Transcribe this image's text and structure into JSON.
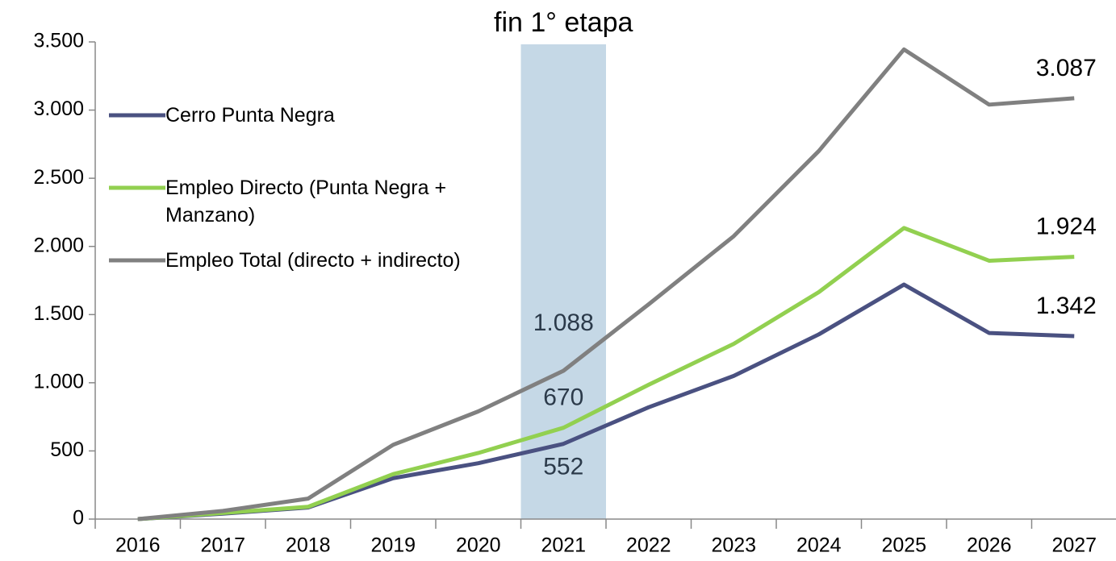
{
  "chart_data": {
    "type": "line",
    "categories": [
      "2016",
      "2017",
      "2018",
      "2019",
      "2020",
      "2021",
      "2022",
      "2023",
      "2024",
      "2025",
      "2026",
      "2027"
    ],
    "series": [
      {
        "name": "Cerro Punta Negra",
        "color": "#4a5181",
        "values": [
          0,
          40,
          85,
          300,
          410,
          552,
          820,
          1050,
          1355,
          1720,
          1365,
          1342
        ],
        "value_labels": [
          null,
          null,
          null,
          null,
          null,
          "552",
          null,
          null,
          null,
          null,
          null,
          "1.342"
        ]
      },
      {
        "name": "Empleo Directo (Punta Negra + Manzano)",
        "color": "#92d050",
        "values": [
          0,
          45,
          90,
          330,
          485,
          670,
          985,
          1285,
          1665,
          2135,
          1895,
          1924
        ],
        "value_labels": [
          null,
          null,
          null,
          null,
          null,
          "670",
          null,
          null,
          null,
          null,
          null,
          "1.924"
        ]
      },
      {
        "name": "Empleo Total (directo + indirecto)",
        "color": "#808080",
        "values": [
          0,
          60,
          150,
          545,
          790,
          1088,
          1575,
          2075,
          2700,
          3445,
          3040,
          3087
        ],
        "value_labels": [
          null,
          null,
          null,
          null,
          null,
          "1.088",
          null,
          null,
          null,
          null,
          null,
          "3.087"
        ]
      }
    ],
    "ylim": [
      0,
      3500
    ],
    "yticks": [
      0,
      500,
      {
        "value": 1000,
        "label": "1.000"
      },
      {
        "value": 1500,
        "label": "1.500"
      },
      {
        "value": 2000,
        "label": "2.000"
      },
      {
        "value": 2500,
        "label": "2.500"
      },
      {
        "value": 3000,
        "label": "3.000"
      },
      {
        "value": 3500,
        "label": "3.500"
      }
    ],
    "grid": false,
    "legend": "upper left",
    "annotations": [
      {
        "text": "fin 1° etapa",
        "category": "2021",
        "color": "#c5d8e6"
      }
    ]
  }
}
